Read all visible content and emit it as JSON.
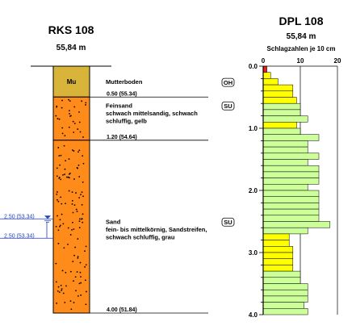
{
  "rks": {
    "title": "RKS 108",
    "elevation": "55,84 m",
    "layers": [
      {
        "top_m": 0.0,
        "bottom_m": 0.5,
        "fill": "#d9b43a",
        "code": "Mu",
        "desc": [
          "Mutterboden"
        ],
        "symbol": "OH",
        "bottom_label": "0.50 (55.34)"
      },
      {
        "top_m": 0.5,
        "bottom_m": 1.2,
        "fill": "#ff8c1a",
        "code": "",
        "desc": [
          "Feinsand",
          "schwach mittelsandig, schwach",
          "schluffig, gelb"
        ],
        "symbol": "SU",
        "bottom_label": "1.20 (54.64)"
      },
      {
        "top_m": 1.2,
        "bottom_m": 4.0,
        "fill": "#ff8c1a",
        "code": "",
        "desc": [
          "Sand",
          "fein- bis mittelkörnig, Sandstreifen,",
          "schwach schluffig, grau"
        ],
        "symbol": "SU",
        "bottom_label": "4.00 (51.84)"
      }
    ],
    "water_levels": [
      {
        "label": "2.50 (53.34)"
      },
      {
        "label": "2.50 (53.34)"
      }
    ]
  },
  "dpl": {
    "title": "DPL 108",
    "elevation": "55,84 m",
    "subtitle": "Schlagzahlen je 10 cm"
  },
  "chart_data": {
    "type": "bar",
    "orientation": "horizontal",
    "title": "DPL 108",
    "subtitle": "Schlagzahlen je 10 cm",
    "x_ticks": [
      "0",
      "10",
      "20"
    ],
    "xlim": [
      0,
      20
    ],
    "y_ticks": [
      "0.0",
      "1.0",
      "2.0",
      "3.0",
      "4.0"
    ],
    "ylim": [
      0,
      4.0
    ],
    "grid": true,
    "depth_top": [
      0.0,
      0.1,
      0.2,
      0.3,
      0.4,
      0.5,
      0.6,
      0.7,
      0.8,
      0.9,
      1.0,
      1.1,
      1.2,
      1.3,
      1.4,
      1.5,
      1.6,
      1.7,
      1.8,
      1.9,
      2.0,
      2.1,
      2.2,
      2.3,
      2.4,
      2.5,
      2.6,
      2.7,
      2.8,
      2.9,
      3.0,
      3.1,
      3.2,
      3.3,
      3.4,
      3.5,
      3.6,
      3.7,
      3.8,
      3.9
    ],
    "values": [
      1,
      2,
      4,
      8,
      8,
      9,
      10,
      10,
      12,
      9,
      10,
      15,
      12,
      12,
      15,
      12,
      15,
      15,
      15,
      12,
      15,
      15,
      15,
      15,
      15,
      18,
      12,
      7,
      7,
      8,
      8,
      8,
      8,
      10,
      10,
      12,
      12,
      12,
      11,
      12
    ],
    "colors": {
      "red": "#e8201e",
      "yellow": "#ffff00",
      "green": "#ccff99",
      "stroke": "#000000"
    },
    "color_rule": "1 red, 2-9 yellow, 10+ green"
  }
}
